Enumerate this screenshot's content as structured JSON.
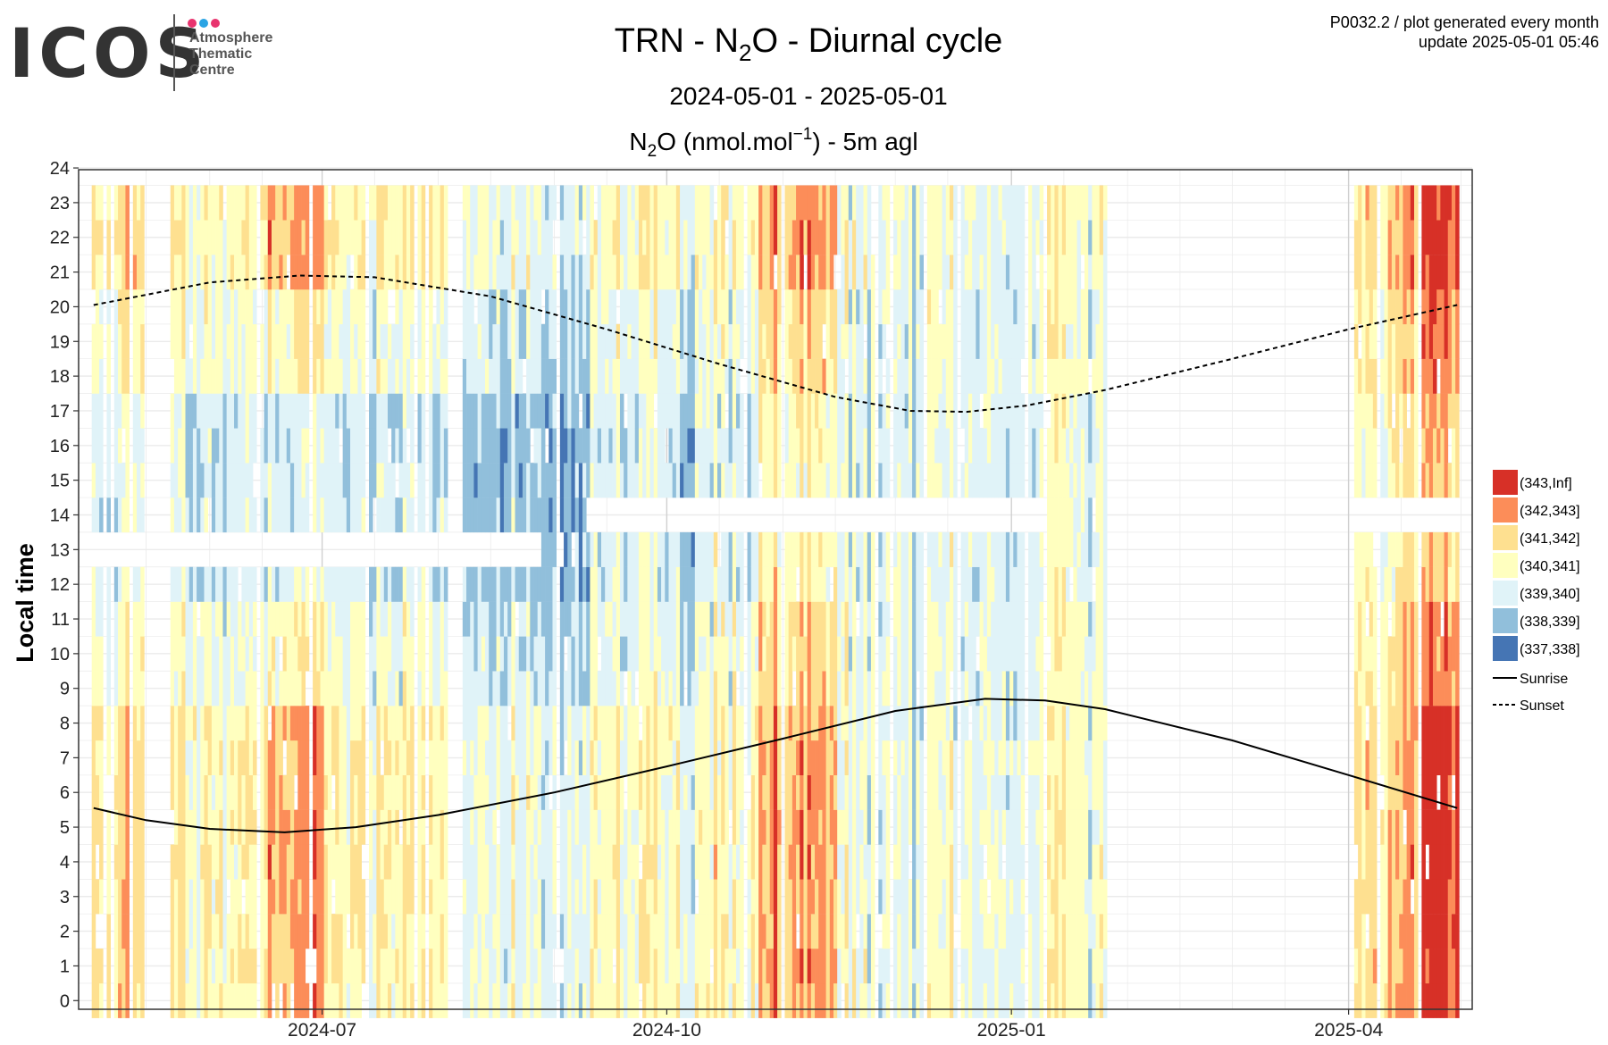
{
  "logo": {
    "word": "ICOS",
    "lines": [
      "Atmosphere",
      "Thematic",
      "Centre"
    ],
    "dot_colors": [
      "#e8336e",
      "#2aa4e4",
      "#e8336e"
    ]
  },
  "meta": {
    "line1": "P0032.2 / plot generated every month",
    "line2": "update  2025-05-01 05:46"
  },
  "chart_data": {
    "type": "heatmap",
    "title": {
      "pre": "TRN - N",
      "sub": "2",
      "post": "O - Diurnal cycle"
    },
    "subtitle": "2024-05-01 - 2025-05-01",
    "panel_title": {
      "pre": "N",
      "sub": "2",
      "mid": "O (nmol.mol",
      "sup": "−1",
      "post": ") - 5m agl"
    },
    "ylabel": "Local time",
    "xlabel": "",
    "x_range": [
      "2024-04-27",
      "2025-05-04"
    ],
    "y_range": [
      -0.25,
      23.95
    ],
    "y_ticks": [
      0,
      1,
      2,
      3,
      4,
      5,
      6,
      7,
      8,
      9,
      10,
      11,
      12,
      13,
      14,
      15,
      16,
      17,
      18,
      19,
      20,
      21,
      22,
      23,
      24
    ],
    "x_ticks": [
      {
        "date": "2024-07-01",
        "label": "2024-07"
      },
      {
        "date": "2024-10-01",
        "label": "2024-10"
      },
      {
        "date": "2025-01-01",
        "label": "2025-01"
      },
      {
        "date": "2025-04-01",
        "label": "2025-04"
      }
    ],
    "grid": true,
    "legend_position": "right",
    "legend": [
      {
        "label": "(343,Inf]",
        "color": "#d73027"
      },
      {
        "label": "(342,343]",
        "color": "#fc8d59"
      },
      {
        "label": "(341,342]",
        "color": "#fee090"
      },
      {
        "label": "(340,341]",
        "color": "#ffffbf"
      },
      {
        "label": "(339,340]",
        "color": "#e0f3f8"
      },
      {
        "label": "(338,339]",
        "color": "#91bfdb"
      },
      {
        "label": "(337,338]",
        "color": "#4575b4"
      }
    ],
    "line_legend": [
      {
        "label": "Sunrise",
        "style": "solid"
      },
      {
        "label": "Sunset",
        "style": "dashed"
      }
    ],
    "data_periods": [
      {
        "start": "2024-05-01",
        "end": "2024-05-14"
      },
      {
        "start": "2024-05-22",
        "end": "2024-08-03"
      },
      {
        "start": "2024-08-08",
        "end": "2025-01-26"
      },
      {
        "start": "2025-04-03",
        "end": "2025-04-30"
      }
    ],
    "day_level_profile": [
      {
        "start": "2024-05-01",
        "end": "2024-05-14",
        "night": 341.4,
        "day": 339.8
      },
      {
        "start": "2024-05-22",
        "end": "2024-06-15",
        "night": 340.6,
        "day": 339.3
      },
      {
        "start": "2024-06-15",
        "end": "2024-07-01",
        "night": 342.2,
        "day": 339.5
      },
      {
        "start": "2024-07-01",
        "end": "2024-08-03",
        "night": 340.9,
        "day": 339.4
      },
      {
        "start": "2024-08-08",
        "end": "2024-09-10",
        "night": 339.9,
        "day": 338.6
      },
      {
        "start": "2024-09-10",
        "end": "2024-10-25",
        "night": 340.4,
        "day": 339.3
      },
      {
        "start": "2024-10-25",
        "end": "2024-11-15",
        "night": 342.3,
        "day": 340.9
      },
      {
        "start": "2024-11-15",
        "end": "2025-01-10",
        "night": 339.9,
        "day": 339.6
      },
      {
        "start": "2025-01-10",
        "end": "2025-01-26",
        "night": 340.5,
        "day": 340.1
      },
      {
        "start": "2025-04-03",
        "end": "2025-04-20",
        "night": 341.6,
        "day": 340.6
      },
      {
        "start": "2025-04-20",
        "end": "2025-04-30",
        "night": 343.4,
        "day": 341.8
      }
    ],
    "missing_hours": [
      {
        "start": "2024-05-01",
        "end": "2024-08-28",
        "hours": [
          13
        ]
      },
      {
        "start": "2024-09-10",
        "end": "2025-01-10",
        "hours": [
          14
        ]
      },
      {
        "start": "2025-04-03",
        "end": "2025-04-30",
        "hours": [
          14
        ]
      }
    ],
    "sunrise": [
      {
        "date": "2024-05-01",
        "hour": 5.55
      },
      {
        "date": "2024-05-15",
        "hour": 5.2
      },
      {
        "date": "2024-06-01",
        "hour": 4.95
      },
      {
        "date": "2024-06-21",
        "hour": 4.85
      },
      {
        "date": "2024-07-10",
        "hour": 5.0
      },
      {
        "date": "2024-08-01",
        "hour": 5.35
      },
      {
        "date": "2024-09-01",
        "hour": 6.0
      },
      {
        "date": "2024-10-01",
        "hour": 6.75
      },
      {
        "date": "2024-11-01",
        "hour": 7.55
      },
      {
        "date": "2024-12-01",
        "hour": 8.35
      },
      {
        "date": "2024-12-25",
        "hour": 8.7
      },
      {
        "date": "2025-01-10",
        "hour": 8.65
      },
      {
        "date": "2025-01-26",
        "hour": 8.4
      },
      {
        "date": "2025-03-01",
        "hour": 7.5
      },
      {
        "date": "2025-04-01",
        "hour": 6.5
      },
      {
        "date": "2025-04-30",
        "hour": 5.55
      }
    ],
    "sunset": [
      {
        "date": "2024-05-01",
        "hour": 20.05
      },
      {
        "date": "2024-06-01",
        "hour": 20.7
      },
      {
        "date": "2024-06-25",
        "hour": 20.9
      },
      {
        "date": "2024-07-15",
        "hour": 20.85
      },
      {
        "date": "2024-08-15",
        "hour": 20.3
      },
      {
        "date": "2024-09-15",
        "hour": 19.35
      },
      {
        "date": "2024-10-15",
        "hour": 18.35
      },
      {
        "date": "2024-11-15",
        "hour": 17.4
      },
      {
        "date": "2024-12-05",
        "hour": 17.0
      },
      {
        "date": "2024-12-20",
        "hour": 16.97
      },
      {
        "date": "2025-01-05",
        "hour": 17.15
      },
      {
        "date": "2025-01-26",
        "hour": 17.6
      },
      {
        "date": "2025-03-01",
        "hour": 18.5
      },
      {
        "date": "2025-04-01",
        "hour": 19.35
      },
      {
        "date": "2025-04-30",
        "hour": 20.05
      }
    ]
  }
}
